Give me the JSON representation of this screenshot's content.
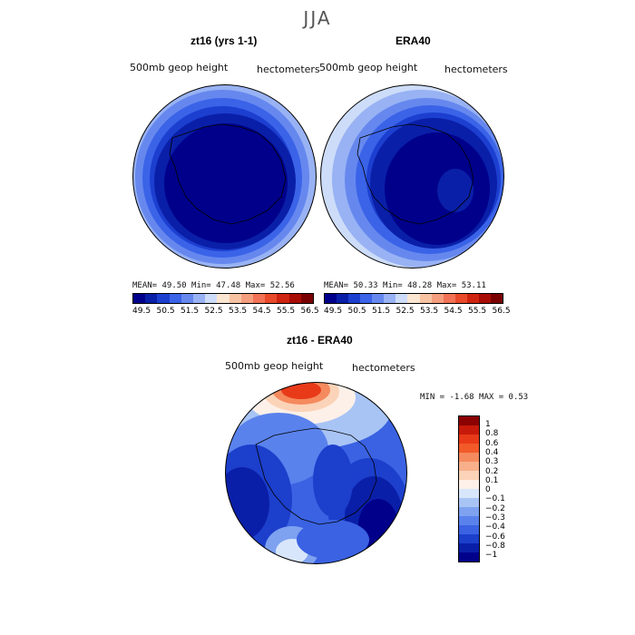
{
  "main_title": "JJA",
  "panel_left": {
    "title": "zt16 (yrs 1-1)",
    "field": "500mb geop height",
    "units": "hectometers",
    "stats": "MEAN=  49.50   Min=  47.48   Max=  52.56"
  },
  "panel_right": {
    "title": "ERA40",
    "field": "500mb geop height",
    "units": "hectometers",
    "stats": "MEAN=  50.33   Min=  48.28   Max=  53.11"
  },
  "panel_diff": {
    "title": "zt16 - ERA40",
    "field": "500mb geop height",
    "units": "hectometers",
    "stats": "MIN =   -1.68  MAX =    0.53"
  },
  "horizontal_colorbar": {
    "labels": [
      "49.5",
      "50.5",
      "51.5",
      "52.5",
      "53.5",
      "54.5",
      "55.5",
      "56.5"
    ],
    "colors": [
      "#00008b",
      "#0a1fa8",
      "#1c3fd0",
      "#3a63e8",
      "#6688ee",
      "#98b2f4",
      "#cddcf8",
      "#fbe6d2",
      "#f8c3a3",
      "#f59e7d",
      "#f27255",
      "#e84a2a",
      "#cf2410",
      "#a80d05",
      "#7a0000"
    ]
  },
  "diff_colorbar": {
    "labels": [
      "1",
      "0.8",
      "0.6",
      "0.4",
      "0.3",
      "0.2",
      "0.1",
      "0",
      "−0.1",
      "−0.2",
      "−0.3",
      "−0.4",
      "−0.6",
      "−0.8",
      "−1"
    ],
    "colors": [
      "#8b0000",
      "#c81a0a",
      "#e83a18",
      "#f25a2a",
      "#f58a5e",
      "#f8b08a",
      "#fbd3b8",
      "#fdf0e8",
      "#d8e6fb",
      "#a8c4f5",
      "#7ea2f0",
      "#5a82ec",
      "#3a62e2",
      "#1c3fcc",
      "#0a1fa8",
      "#00008b"
    ]
  }
}
